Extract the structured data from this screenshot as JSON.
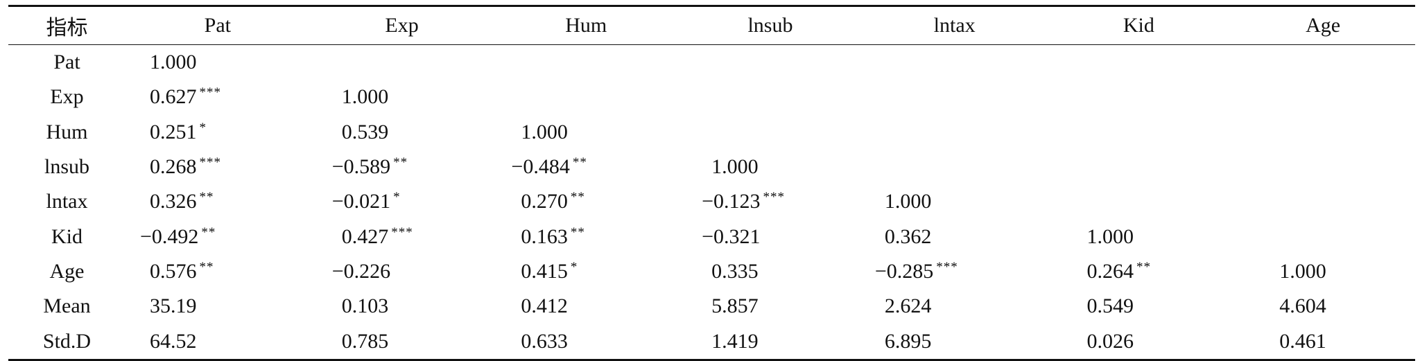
{
  "table": {
    "headers": [
      "指标",
      "Pat",
      "Exp",
      "Hum",
      "lnsub",
      "lntax",
      "Kid",
      "Age"
    ],
    "rows": [
      {
        "label": "Pat",
        "cells": [
          [
            "1.000",
            ""
          ],
          [
            "",
            ""
          ],
          [
            "",
            ""
          ],
          [
            "",
            ""
          ],
          [
            "",
            ""
          ],
          [
            "",
            ""
          ],
          [
            "",
            ""
          ]
        ]
      },
      {
        "label": "Exp",
        "cells": [
          [
            "0.627",
            "***"
          ],
          [
            "1.000",
            ""
          ],
          [
            "",
            ""
          ],
          [
            "",
            ""
          ],
          [
            "",
            ""
          ],
          [
            "",
            ""
          ],
          [
            "",
            ""
          ]
        ]
      },
      {
        "label": "Hum",
        "cells": [
          [
            "0.251",
            "*"
          ],
          [
            "0.539",
            ""
          ],
          [
            "1.000",
            ""
          ],
          [
            "",
            ""
          ],
          [
            "",
            ""
          ],
          [
            "",
            ""
          ],
          [
            "",
            ""
          ]
        ]
      },
      {
        "label": "lnsub",
        "cells": [
          [
            "0.268",
            "***"
          ],
          [
            "−0.589",
            "**"
          ],
          [
            "−0.484",
            "**"
          ],
          [
            "1.000",
            ""
          ],
          [
            "",
            ""
          ],
          [
            "",
            ""
          ],
          [
            "",
            ""
          ]
        ]
      },
      {
        "label": "lntax",
        "cells": [
          [
            "0.326",
            "**"
          ],
          [
            "−0.021",
            "*"
          ],
          [
            "0.270",
            "**"
          ],
          [
            "−0.123",
            "***"
          ],
          [
            "1.000",
            ""
          ],
          [
            "",
            ""
          ],
          [
            "",
            ""
          ]
        ]
      },
      {
        "label": "Kid",
        "cells": [
          [
            "−0.492",
            "**"
          ],
          [
            "0.427",
            "***"
          ],
          [
            "0.163",
            "**"
          ],
          [
            "−0.321",
            ""
          ],
          [
            "0.362",
            ""
          ],
          [
            "1.000",
            ""
          ],
          [
            "",
            ""
          ]
        ]
      },
      {
        "label": "Age",
        "cells": [
          [
            "0.576",
            "**"
          ],
          [
            "−0.226",
            ""
          ],
          [
            "0.415",
            "*"
          ],
          [
            "0.335",
            ""
          ],
          [
            "−0.285",
            "***"
          ],
          [
            "0.264",
            "**"
          ],
          [
            "1.000",
            ""
          ]
        ]
      },
      {
        "label": "Mean",
        "cells": [
          [
            "35.19",
            ""
          ],
          [
            "0.103",
            ""
          ],
          [
            "0.412",
            ""
          ],
          [
            "5.857",
            ""
          ],
          [
            "2.624",
            ""
          ],
          [
            "0.549",
            ""
          ],
          [
            "4.604",
            ""
          ]
        ]
      },
      {
        "label": "Std.D",
        "cells": [
          [
            "64.52",
            ""
          ],
          [
            "0.785",
            ""
          ],
          [
            "0.633",
            ""
          ],
          [
            "1.419",
            ""
          ],
          [
            "6.895",
            ""
          ],
          [
            "0.026",
            ""
          ],
          [
            "0.461",
            ""
          ]
        ]
      }
    ]
  }
}
